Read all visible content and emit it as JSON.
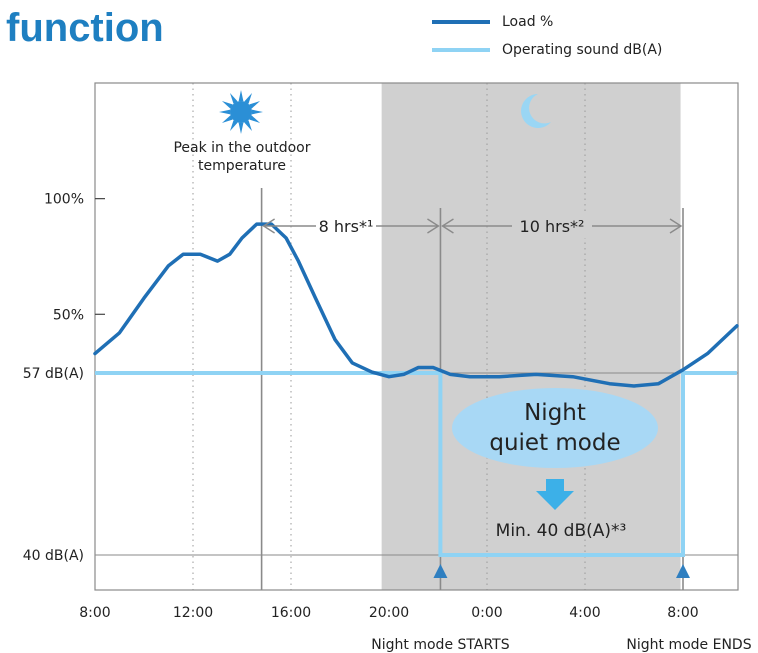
{
  "header": {
    "title": "function"
  },
  "colors": {
    "load": "#1f6fb5",
    "sound": "#8fd3f4",
    "night_band": "#d0d0d0",
    "bubble": "#a8d8f5",
    "accent_arrow": "#3cb0e8",
    "marker": "#2f7fc0",
    "sun": "#2b8fd6",
    "moon": "#9ad6f4"
  },
  "icons": [
    "sun-icon",
    "moon-icon",
    "down-arrow-icon",
    "night-start-marker-icon",
    "night-end-marker-icon"
  ],
  "chart_data": {
    "type": "line",
    "x_unit": "hours since 8:00",
    "xlim": [
      0,
      26.2
    ],
    "x_ticks": [
      {
        "x": 0,
        "label": "8:00"
      },
      {
        "x": 4,
        "label": "12:00"
      },
      {
        "x": 8,
        "label": "16:00"
      },
      {
        "x": 12,
        "label": "20:00"
      },
      {
        "x": 16,
        "label": "0:00"
      },
      {
        "x": 20,
        "label": "4:00"
      },
      {
        "x": 24,
        "label": "8:00"
      }
    ],
    "load_axis": {
      "ticks": [
        {
          "value": 100,
          "label": "100%"
        },
        {
          "value": 50,
          "label": "50%"
        }
      ],
      "ylim": [
        -69.2,
        150
      ]
    },
    "sound_axis": {
      "ticks": [
        {
          "value": 57,
          "label": "57 dB(A)"
        },
        {
          "value": 40,
          "label": "40 dB(A)"
        }
      ]
    },
    "series": [
      {
        "name": "Load %",
        "x": [
          0,
          1,
          2,
          3,
          3.6,
          4.3,
          5,
          5.5,
          6,
          6.6,
          7.2,
          7.8,
          8.3,
          9,
          9.8,
          10.5,
          11.3,
          12,
          12.6,
          13.2,
          13.8,
          14.5,
          15.3,
          16.5,
          18,
          19.5,
          21,
          22,
          23,
          24,
          25,
          26.2
        ],
        "y": [
          33,
          42,
          57,
          71,
          76,
          76,
          73,
          76,
          83,
          89,
          89,
          83,
          73,
          57,
          39,
          29,
          25,
          23,
          24,
          27,
          27,
          24,
          23,
          23,
          24,
          23,
          20,
          19,
          20,
          26,
          33,
          45
        ]
      },
      {
        "name": "Operating sound dB(A)",
        "x": [
          0,
          14.1,
          14.1,
          24,
          24,
          26.2
        ],
        "y": [
          57,
          57,
          40,
          40,
          57,
          57
        ]
      }
    ],
    "night_band": {
      "start": 11.7,
      "end": 23.9
    },
    "night_mode_start": 14.1,
    "night_mode_end": 24,
    "peak_x": 6.8,
    "annotations": {
      "peak_line1": "Peak in the outdoor",
      "peak_line2": "temperature",
      "span1_label": "8 hrs*¹",
      "span2_label": "10 hrs*²",
      "mode_line1": "Night",
      "mode_line2": "quiet mode",
      "min_label": "Min. 40 dB(A)*³",
      "night_start_label": "Night mode STARTS",
      "night_end_label": "Night mode ENDS"
    },
    "grid_x": [
      4,
      8,
      16,
      20
    ],
    "grid": "dotted-vertical"
  }
}
